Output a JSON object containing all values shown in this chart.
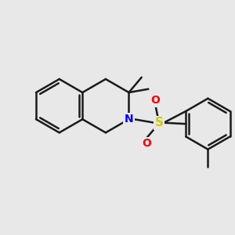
{
  "background_color": "#e8e8e8",
  "bond_color": "#1a1a1a",
  "bond_width": 1.8,
  "atom_labels": {
    "N": {
      "color": "#0000ff",
      "fontsize": 10,
      "fontweight": "bold"
    },
    "S": {
      "color": "#cccc00",
      "fontsize": 11,
      "fontweight": "bold"
    },
    "O_up": {
      "color": "#ff0000",
      "fontsize": 10,
      "fontweight": "bold"
    },
    "O_down": {
      "color": "#ff0000",
      "fontsize": 10,
      "fontweight": "bold"
    }
  },
  "figsize": [
    3.0,
    3.0
  ],
  "dpi": 100,
  "xlim": [
    0,
    10
  ],
  "ylim": [
    0,
    10
  ]
}
